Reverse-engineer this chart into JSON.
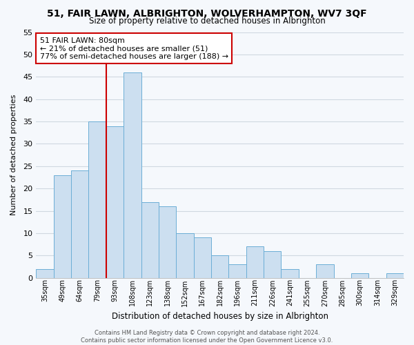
{
  "title": "51, FAIR LAWN, ALBRIGHTON, WOLVERHAMPTON, WV7 3QF",
  "subtitle": "Size of property relative to detached houses in Albrighton",
  "xlabel": "Distribution of detached houses by size in Albrighton",
  "ylabel": "Number of detached properties",
  "footer_line1": "Contains HM Land Registry data © Crown copyright and database right 2024.",
  "footer_line2": "Contains public sector information licensed under the Open Government Licence v3.0.",
  "categories": [
    "35sqm",
    "49sqm",
    "64sqm",
    "79sqm",
    "93sqm",
    "108sqm",
    "123sqm",
    "138sqm",
    "152sqm",
    "167sqm",
    "182sqm",
    "196sqm",
    "211sqm",
    "226sqm",
    "241sqm",
    "255sqm",
    "270sqm",
    "285sqm",
    "300sqm",
    "314sqm",
    "329sqm"
  ],
  "values": [
    2,
    23,
    24,
    35,
    34,
    46,
    17,
    16,
    10,
    9,
    5,
    3,
    7,
    6,
    2,
    0,
    3,
    0,
    1,
    0,
    1
  ],
  "bar_color": "#ccdff0",
  "bar_edge_color": "#6baed6",
  "highlight_line_color": "#cc0000",
  "ylim": [
    0,
    55
  ],
  "yticks": [
    0,
    5,
    10,
    15,
    20,
    25,
    30,
    35,
    40,
    45,
    50,
    55
  ],
  "annotation_line1": "51 FAIR LAWN: 80sqm",
  "annotation_line2": "← 21% of detached houses are smaller (51)",
  "annotation_line3": "77% of semi-detached houses are larger (188) →",
  "annotation_box_color": "#ffffff",
  "annotation_box_edge_color": "#cc0000",
  "bg_color": "#f5f8fc",
  "grid_color": "#d0d8e0"
}
